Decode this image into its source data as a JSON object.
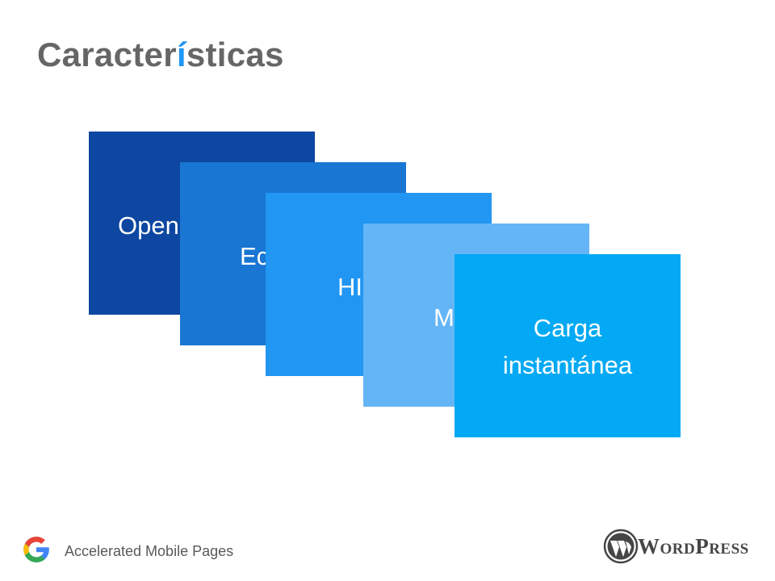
{
  "title": [
    "Caracter",
    "í",
    "sticas"
  ],
  "title_colors": [
    "#666666",
    "#2196f3",
    "#666666"
  ],
  "cards": [
    {
      "label": "Open",
      "color": "#0d47a1"
    },
    {
      "label": "Ec",
      "color": "#1976d2"
    },
    {
      "label": "HI",
      "color": "#2196f3"
    },
    {
      "label": "M",
      "color": "#64b5f6"
    },
    {
      "label": "Carga instantánea",
      "color": "#03a9f4"
    }
  ],
  "footer": {
    "text": "Accelerated Mobile Pages",
    "logo_text": "WordPress"
  }
}
